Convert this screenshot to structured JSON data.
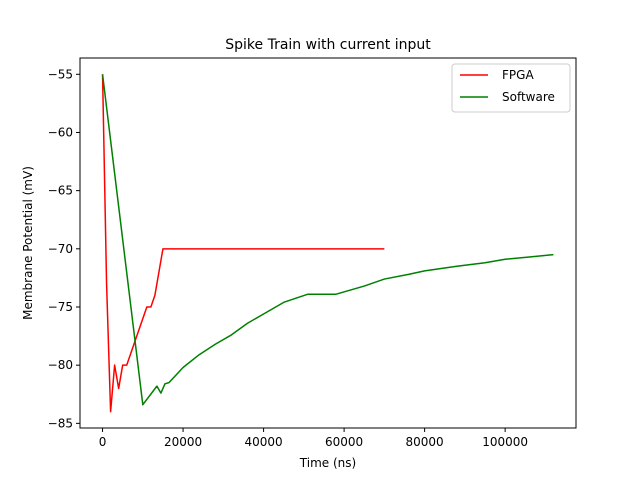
{
  "chart_data": {
    "type": "line",
    "title": "Spike Train with current input",
    "xlabel": "Time (ns)",
    "ylabel": "Membrane Potential (mV)",
    "xlim": [
      -5600,
      117600
    ],
    "ylim": [
      -85.4,
      -53.6
    ],
    "xticks": [
      0,
      20000,
      40000,
      60000,
      80000,
      100000
    ],
    "yticks": [
      -55,
      -60,
      -65,
      -70,
      -75,
      -80,
      -85
    ],
    "grid": false,
    "legend_position": "top-right",
    "series": [
      {
        "name": "FPGA",
        "color": "#ff0000",
        "x": [
          0,
          1000,
          2000,
          3000,
          4000,
          5000,
          6000,
          7000,
          8000,
          9000,
          10000,
          11000,
          12000,
          13000,
          14000,
          15000,
          70000
        ],
        "y": [
          -55,
          -73,
          -84,
          -80,
          -82,
          -80,
          -80,
          -79,
          -78,
          -77,
          -76,
          -75,
          -75,
          -74,
          -72,
          -70,
          -70
        ]
      },
      {
        "name": "Software",
        "color": "#008000",
        "x": [
          0,
          10000,
          13500,
          14500,
          15500,
          16500,
          20000,
          24000,
          28000,
          32000,
          36000,
          40000,
          45000,
          51000,
          58000,
          65000,
          70000,
          76000,
          80000,
          88000,
          95000,
          100000,
          106000,
          112000
        ],
        "y": [
          -55,
          -83.4,
          -81.8,
          -82.4,
          -81.6,
          -81.5,
          -80.2,
          -79.1,
          -78.2,
          -77.4,
          -76.4,
          -75.6,
          -74.6,
          -73.9,
          -73.9,
          -73.2,
          -72.6,
          -72.2,
          -71.9,
          -71.5,
          -71.2,
          -70.9,
          -70.7,
          -70.5
        ]
      }
    ]
  }
}
